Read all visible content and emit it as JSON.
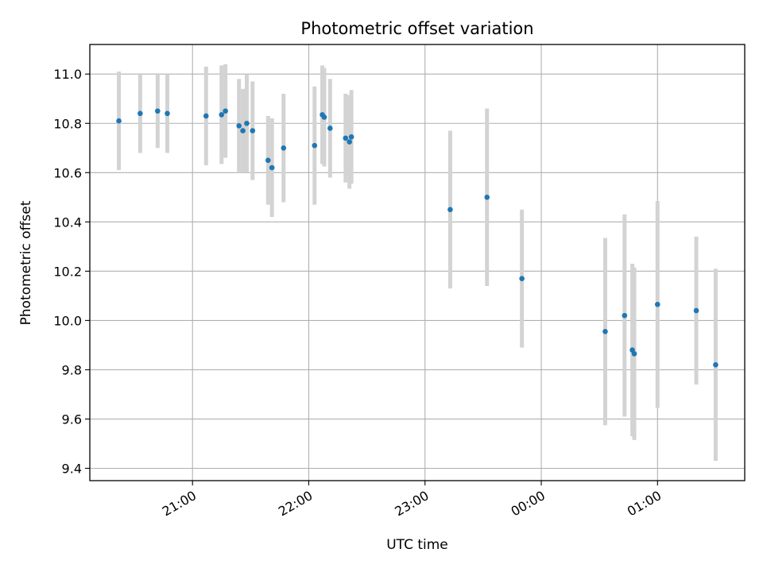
{
  "chart_data": {
    "type": "scatter",
    "title": "Photometric offset variation",
    "xlabel": "UTC time",
    "ylabel": "Photometric offset",
    "grid": true,
    "xlim": [
      "20:07",
      "01:45"
    ],
    "ylim": [
      9.35,
      11.12
    ],
    "x_ticks": [
      "21:00",
      "22:00",
      "23:00",
      "00:00",
      "01:00"
    ],
    "y_ticks": [
      "9.4",
      "9.6",
      "9.8",
      "10.0",
      "10.2",
      "10.4",
      "10.6",
      "10.8",
      "11.0"
    ],
    "colors": {
      "marker": "#1f77b4",
      "errorbar": "#d3d3d3",
      "grid": "#b0b0b0"
    },
    "points": [
      {
        "x": "20:22",
        "y": 10.81,
        "err": 0.2
      },
      {
        "x": "20:33",
        "y": 10.84,
        "err": 0.16
      },
      {
        "x": "20:42",
        "y": 10.85,
        "err": 0.15
      },
      {
        "x": "20:47",
        "y": 10.84,
        "err": 0.16
      },
      {
        "x": "21:07",
        "y": 10.83,
        "err": 0.2
      },
      {
        "x": "21:15",
        "y": 10.835,
        "err": 0.2
      },
      {
        "x": "21:17",
        "y": 10.85,
        "err": 0.19
      },
      {
        "x": "21:24",
        "y": 10.79,
        "err": 0.19
      },
      {
        "x": "21:26",
        "y": 10.77,
        "err": 0.17
      },
      {
        "x": "21:28",
        "y": 10.8,
        "err": 0.2
      },
      {
        "x": "21:31",
        "y": 10.77,
        "err": 0.2
      },
      {
        "x": "21:39",
        "y": 10.65,
        "err": 0.18
      },
      {
        "x": "21:41",
        "y": 10.62,
        "err": 0.2
      },
      {
        "x": "21:47",
        "y": 10.7,
        "err": 0.22
      },
      {
        "x": "22:03",
        "y": 10.71,
        "err": 0.24
      },
      {
        "x": "22:07",
        "y": 10.835,
        "err": 0.2
      },
      {
        "x": "22:08",
        "y": 10.825,
        "err": 0.2
      },
      {
        "x": "22:11",
        "y": 10.78,
        "err": 0.2
      },
      {
        "x": "22:19",
        "y": 10.74,
        "err": 0.18
      },
      {
        "x": "22:21",
        "y": 10.725,
        "err": 0.19
      },
      {
        "x": "22:22",
        "y": 10.745,
        "err": 0.19
      },
      {
        "x": "23:13",
        "y": 10.45,
        "err": 0.32
      },
      {
        "x": "23:32",
        "y": 10.5,
        "err": 0.36
      },
      {
        "x": "23:50",
        "y": 10.17,
        "err": 0.28
      },
      {
        "x": "00:33",
        "y": 9.955,
        "err": 0.38
      },
      {
        "x": "00:43",
        "y": 10.02,
        "err": 0.41
      },
      {
        "x": "00:47",
        "y": 9.88,
        "err": 0.35
      },
      {
        "x": "00:48",
        "y": 9.865,
        "err": 0.35
      },
      {
        "x": "01:00",
        "y": 10.065,
        "err": 0.42
      },
      {
        "x": "01:20",
        "y": 10.04,
        "err": 0.3
      },
      {
        "x": "01:30",
        "y": 9.82,
        "err": 0.39
      }
    ]
  }
}
